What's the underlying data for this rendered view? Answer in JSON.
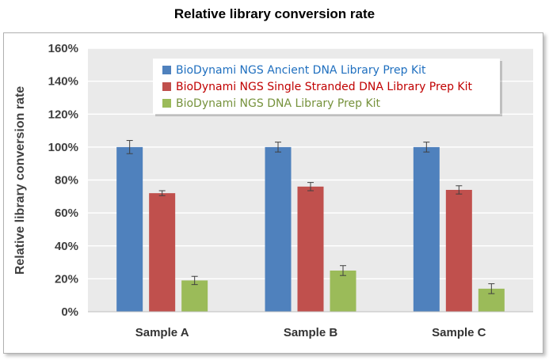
{
  "chart_data": {
    "type": "bar",
    "title": "Relative library conversion rate",
    "ylabel": "Relative library conversion rate",
    "xlabel": "",
    "categories": [
      "Sample A",
      "Sample B",
      "Sample C"
    ],
    "ylim": [
      0,
      160
    ],
    "yticks": [
      "0%",
      "20%",
      "40%",
      "60%",
      "80%",
      "100%",
      "120%",
      "140%",
      "160%"
    ],
    "ytick_values": [
      0,
      20,
      40,
      60,
      80,
      100,
      120,
      140,
      160
    ],
    "grid": true,
    "legend_position": "top-right",
    "series": [
      {
        "name": "BioDynami NGS Ancient DNA Library Prep Kit",
        "color": "#4f81bd",
        "legend_text_color": "#1f6fbf",
        "values": [
          100,
          100,
          100
        ],
        "errors": [
          4,
          3,
          3
        ]
      },
      {
        "name": "BioDynami NGS Single Stranded DNA Library Prep Kit",
        "color": "#c0504d",
        "legend_text_color": "#c00000",
        "values": [
          72,
          76,
          74
        ],
        "errors": [
          1.5,
          2.5,
          2.5
        ]
      },
      {
        "name": "BioDynami NGS DNA Library Prep Kit",
        "color": "#9bbb59",
        "legend_text_color": "#76923c",
        "values": [
          19,
          25,
          14
        ],
        "errors": [
          2.5,
          3,
          3
        ]
      }
    ]
  }
}
